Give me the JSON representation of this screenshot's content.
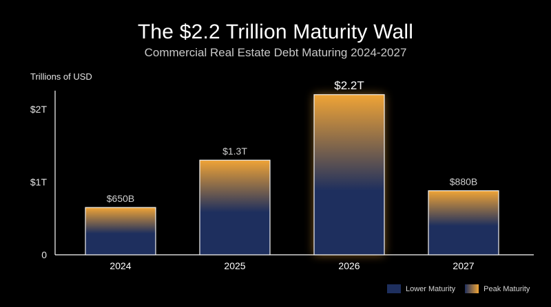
{
  "title": "The $2.2 Trillion Maturity Wall",
  "subtitle": "Commercial Real Estate Debt Maturing 2024-2027",
  "colors": {
    "background": "#000000",
    "bar_base": "#1e2f5e",
    "bar_peak": "#f0a436",
    "bar_outline": "#f2f2f2",
    "axis": "#ffffff",
    "label": "#cfcfcf",
    "highlight_label": "#ffffff"
  },
  "legend": {
    "items": [
      {
        "label": "Lower Maturity",
        "color": "#1e2f5e"
      },
      {
        "label": "Peak Maturity",
        "color": "#f0a436"
      }
    ]
  },
  "chart_data": {
    "type": "bar",
    "title": "The $2.2 Trillion Maturity Wall",
    "subtitle": "Commercial Real Estate Debt Maturing 2024-2027",
    "xlabel": "",
    "ylabel": "Trillions of USD",
    "categories": [
      "2024",
      "2025",
      "2026",
      "2027"
    ],
    "values": [
      0.65,
      1.3,
      2.2,
      0.88
    ],
    "data_labels": [
      "$650B",
      "$1.3T",
      "$2.2T",
      "$880B"
    ],
    "highlight": "2026",
    "yticks": [
      0,
      1,
      2
    ],
    "ytick_labels": [
      "0",
      "$1T",
      "$2T"
    ],
    "ylim": [
      0,
      2.4
    ],
    "grid": false,
    "legend_position": "bottom-right"
  }
}
